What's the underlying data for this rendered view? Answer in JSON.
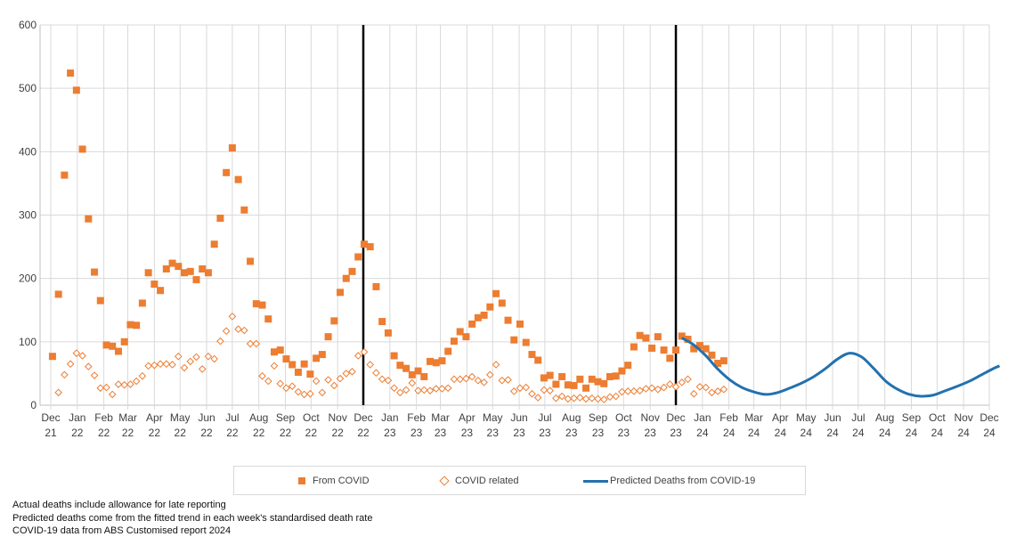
{
  "chart_data": {
    "type": "scatter",
    "title": "",
    "xlabel": "",
    "ylabel": "",
    "ylim": [
      0,
      600
    ],
    "yticks": [
      0,
      100,
      200,
      300,
      400,
      500,
      600
    ],
    "xlim": [
      "2021-12-01",
      "2024-12-01"
    ],
    "grid": true,
    "legend_placement": "bottom",
    "x_tick_labels": [
      {
        "m": "Dec",
        "y": "21",
        "d": "2021-12-01"
      },
      {
        "m": "Jan",
        "y": "22",
        "d": "2022-01-01"
      },
      {
        "m": "Feb",
        "y": "22",
        "d": "2022-02-01"
      },
      {
        "m": "Mar",
        "y": "22",
        "d": "2022-03-01"
      },
      {
        "m": "Apr",
        "y": "22",
        "d": "2022-04-01"
      },
      {
        "m": "May",
        "y": "22",
        "d": "2022-05-01"
      },
      {
        "m": "Jun",
        "y": "22",
        "d": "2022-06-01"
      },
      {
        "m": "Jul",
        "y": "22",
        "d": "2022-07-01"
      },
      {
        "m": "Aug",
        "y": "22",
        "d": "2022-08-01"
      },
      {
        "m": "Sep",
        "y": "22",
        "d": "2022-09-01"
      },
      {
        "m": "Oct",
        "y": "22",
        "d": "2022-10-01"
      },
      {
        "m": "Nov",
        "y": "22",
        "d": "2022-11-01"
      },
      {
        "m": "Dec",
        "y": "22",
        "d": "2022-12-01"
      },
      {
        "m": "Jan",
        "y": "23",
        "d": "2023-01-01"
      },
      {
        "m": "Feb",
        "y": "23",
        "d": "2023-02-01"
      },
      {
        "m": "Mar",
        "y": "23",
        "d": "2023-03-01"
      },
      {
        "m": "Apr",
        "y": "23",
        "d": "2023-04-01"
      },
      {
        "m": "May",
        "y": "23",
        "d": "2023-05-01"
      },
      {
        "m": "Jun",
        "y": "23",
        "d": "2023-06-01"
      },
      {
        "m": "Jul",
        "y": "23",
        "d": "2023-07-01"
      },
      {
        "m": "Aug",
        "y": "23",
        "d": "2023-08-01"
      },
      {
        "m": "Sep",
        "y": "23",
        "d": "2023-09-01"
      },
      {
        "m": "Oct",
        "y": "23",
        "d": "2023-10-01"
      },
      {
        "m": "Nov",
        "y": "23",
        "d": "2023-11-01"
      },
      {
        "m": "Dec",
        "y": "23",
        "d": "2023-12-01"
      },
      {
        "m": "Jan",
        "y": "24",
        "d": "2024-01-01"
      },
      {
        "m": "Feb",
        "y": "24",
        "d": "2024-02-01"
      },
      {
        "m": "Mar",
        "y": "24",
        "d": "2024-03-01"
      },
      {
        "m": "Apr",
        "y": "24",
        "d": "2024-04-01"
      },
      {
        "m": "May",
        "y": "24",
        "d": "2024-05-01"
      },
      {
        "m": "Jun",
        "y": "24",
        "d": "2024-06-01"
      },
      {
        "m": "Jul",
        "y": "24",
        "d": "2024-07-01"
      },
      {
        "m": "Aug",
        "y": "24",
        "d": "2024-08-01"
      },
      {
        "m": "Sep",
        "y": "24",
        "d": "2024-09-01"
      },
      {
        "m": "Oct",
        "y": "24",
        "d": "2024-10-01"
      },
      {
        "m": "Nov",
        "y": "24",
        "d": "2024-11-01"
      },
      {
        "m": "Dec",
        "y": "24",
        "d": "2024-12-01"
      }
    ],
    "vertical_markers": [
      "2022-12-01",
      "2023-12-01"
    ],
    "weeks": [
      "2021-12-03",
      "2021-12-10",
      "2021-12-17",
      "2021-12-24",
      "2021-12-31",
      "2022-01-07",
      "2022-01-14",
      "2022-01-21",
      "2022-01-28",
      "2022-02-04",
      "2022-02-11",
      "2022-02-18",
      "2022-02-25",
      "2022-03-04",
      "2022-03-11",
      "2022-03-18",
      "2022-03-25",
      "2022-04-01",
      "2022-04-08",
      "2022-04-15",
      "2022-04-22",
      "2022-04-29",
      "2022-05-06",
      "2022-05-13",
      "2022-05-20",
      "2022-05-27",
      "2022-06-03",
      "2022-06-10",
      "2022-06-17",
      "2022-06-24",
      "2022-07-01",
      "2022-07-08",
      "2022-07-15",
      "2022-07-22",
      "2022-07-29",
      "2022-08-05",
      "2022-08-12",
      "2022-08-19",
      "2022-08-26",
      "2022-09-02",
      "2022-09-09",
      "2022-09-16",
      "2022-09-23",
      "2022-09-30",
      "2022-10-07",
      "2022-10-14",
      "2022-10-21",
      "2022-10-28",
      "2022-11-04",
      "2022-11-11",
      "2022-11-18",
      "2022-11-25",
      "2022-12-02",
      "2022-12-09",
      "2022-12-16",
      "2022-12-23",
      "2022-12-30",
      "2023-01-06",
      "2023-01-13",
      "2023-01-20",
      "2023-01-27",
      "2023-02-03",
      "2023-02-10",
      "2023-02-17",
      "2023-02-24",
      "2023-03-03",
      "2023-03-10",
      "2023-03-17",
      "2023-03-24",
      "2023-03-31",
      "2023-04-07",
      "2023-04-14",
      "2023-04-21",
      "2023-04-28",
      "2023-05-05",
      "2023-05-12",
      "2023-05-19",
      "2023-05-26",
      "2023-06-02",
      "2023-06-09",
      "2023-06-16",
      "2023-06-23",
      "2023-06-30",
      "2023-07-07",
      "2023-07-14",
      "2023-07-21",
      "2023-07-28",
      "2023-08-04",
      "2023-08-11",
      "2023-08-18",
      "2023-08-25",
      "2023-09-01",
      "2023-09-08",
      "2023-09-15",
      "2023-09-22",
      "2023-09-29",
      "2023-10-06",
      "2023-10-13",
      "2023-10-20",
      "2023-10-27",
      "2023-11-03",
      "2023-11-10",
      "2023-11-17",
      "2023-11-24",
      "2023-12-01",
      "2023-12-08",
      "2023-12-15",
      "2023-12-22",
      "2023-12-29",
      "2024-01-05",
      "2024-01-12",
      "2024-01-19",
      "2024-01-26"
    ],
    "series": [
      {
        "name": "From COVID",
        "kind": "filled-square",
        "color": "#ED7D31",
        "values": [
          77,
          175,
          363,
          524,
          497,
          404,
          294,
          210,
          165,
          95,
          93,
          85,
          100,
          127,
          126,
          161,
          209,
          191,
          181,
          215,
          224,
          219,
          209,
          211,
          198,
          215,
          209,
          254,
          295,
          367,
          406,
          356,
          308,
          227,
          160,
          158,
          136,
          84,
          87,
          73,
          64,
          52,
          65,
          49,
          74,
          80,
          108,
          133,
          178,
          200,
          211,
          234,
          254,
          250,
          187,
          132,
          114,
          78,
          63,
          58,
          48,
          54,
          45,
          69,
          67,
          70,
          85,
          101,
          116,
          108,
          128,
          138,
          142,
          155,
          176,
          161,
          134,
          103,
          128,
          99,
          80,
          71,
          43,
          47,
          33,
          45,
          32,
          31,
          41,
          27,
          41,
          37,
          34,
          45,
          46,
          54,
          63,
          92,
          110,
          106,
          90,
          108,
          87,
          74,
          87,
          109,
          104,
          89,
          94,
          89,
          79,
          66,
          70
        ]
      },
      {
        "name": "COVID related",
        "kind": "hollow-diamond",
        "color": "#ED7D31",
        "values": [
          null,
          20,
          48,
          65,
          82,
          78,
          61,
          47,
          27,
          28,
          17,
          33,
          32,
          33,
          38,
          46,
          62,
          63,
          65,
          65,
          64,
          77,
          59,
          69,
          76,
          57,
          77,
          73,
          101,
          117,
          140,
          120,
          118,
          97,
          97,
          46,
          38,
          62,
          34,
          27,
          30,
          21,
          17,
          18,
          38,
          20,
          40,
          31,
          42,
          50,
          53,
          78,
          84,
          64,
          51,
          41,
          39,
          27,
          20,
          24,
          35,
          23,
          24,
          23,
          26,
          26,
          27,
          41,
          41,
          42,
          45,
          39,
          36,
          48,
          64,
          39,
          40,
          22,
          27,
          28,
          18,
          12,
          24,
          23,
          11,
          14,
          10,
          11,
          12,
          10,
          11,
          10,
          9,
          13,
          14,
          21,
          22,
          22,
          23,
          26,
          27,
          25,
          28,
          33,
          29,
          36,
          41,
          18,
          29,
          28,
          20,
          22,
          25
        ]
      },
      {
        "name": "Predicted Deaths from COVID-19",
        "kind": "line",
        "color": "#2371AE",
        "points": [
          [
            "2023-12-08",
            106
          ],
          [
            "2023-12-22",
            95
          ],
          [
            "2024-01-05",
            78
          ],
          [
            "2024-01-19",
            57
          ],
          [
            "2024-02-02",
            40
          ],
          [
            "2024-02-16",
            28
          ],
          [
            "2024-03-01",
            21
          ],
          [
            "2024-03-15",
            17
          ],
          [
            "2024-03-29",
            20
          ],
          [
            "2024-04-12",
            27
          ],
          [
            "2024-04-26",
            35
          ],
          [
            "2024-05-10",
            45
          ],
          [
            "2024-05-24",
            58
          ],
          [
            "2024-06-07",
            73
          ],
          [
            "2024-06-21",
            82
          ],
          [
            "2024-07-05",
            76
          ],
          [
            "2024-07-19",
            58
          ],
          [
            "2024-08-02",
            38
          ],
          [
            "2024-08-16",
            25
          ],
          [
            "2024-08-30",
            17
          ],
          [
            "2024-09-13",
            14
          ],
          [
            "2024-09-27",
            16
          ],
          [
            "2024-10-11",
            23
          ],
          [
            "2024-10-25",
            30
          ],
          [
            "2024-11-08",
            38
          ],
          [
            "2024-11-22",
            48
          ],
          [
            "2024-12-06",
            58
          ],
          [
            "2024-12-13",
            62
          ]
        ]
      }
    ]
  },
  "legend": [
    "From COVID",
    "COVID related",
    "Predicted Deaths from COVID-19"
  ],
  "notes": [
    "Actual deaths include allowance for late reporting",
    "Predicted deaths  come from the fitted trend in each week's standardised death rate",
    "COVID-19 data from ABS Customised report 2024"
  ]
}
